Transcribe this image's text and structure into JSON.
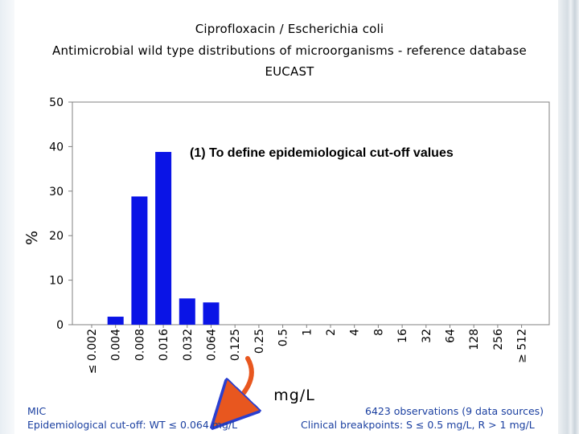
{
  "header": {
    "title": "Ciprofloxacin / Escherichia coli",
    "subtitle": "Antimicrobial wild type distributions of microorganisms - reference database",
    "source": "EUCAST"
  },
  "annotation": "(1) To define epidemiological cut-off values",
  "footer": {
    "mic": "MIC",
    "ecoff": "Epidemiological cut-off: WT ≤ 0.064 mg/L",
    "observations": "6423 observations (9 data sources)",
    "breakpoints": "Clinical breakpoints: S ≤ 0.5 mg/L, R > 1 mg/L"
  },
  "colors": {
    "bar": "#0a14e6",
    "footer_text": "#1a3fa0",
    "arrow": "#e8571f",
    "arrow_outline": "#2a3fd0"
  },
  "chart_data": {
    "type": "bar",
    "title": "Ciprofloxacin / Escherichia coli",
    "xlabel": "mg/L",
    "ylabel": "%",
    "ylim": [
      0,
      50
    ],
    "yticks": [
      "0",
      "10",
      "20",
      "30",
      "40",
      "50"
    ],
    "grid": false,
    "categories": [
      "≤ 0.002",
      "0.004",
      "0.008",
      "0.016",
      "0.032",
      "0.064",
      "0.125",
      "0.25",
      "0.5",
      "1",
      "2",
      "4",
      "8",
      "16",
      "32",
      "64",
      "128",
      "256",
      "≥ 512"
    ],
    "values": [
      0,
      1.8,
      28.8,
      38.8,
      5.9,
      5.0,
      0,
      0,
      0,
      0,
      0,
      0,
      0,
      0,
      0,
      0,
      0,
      0,
      0
    ]
  }
}
